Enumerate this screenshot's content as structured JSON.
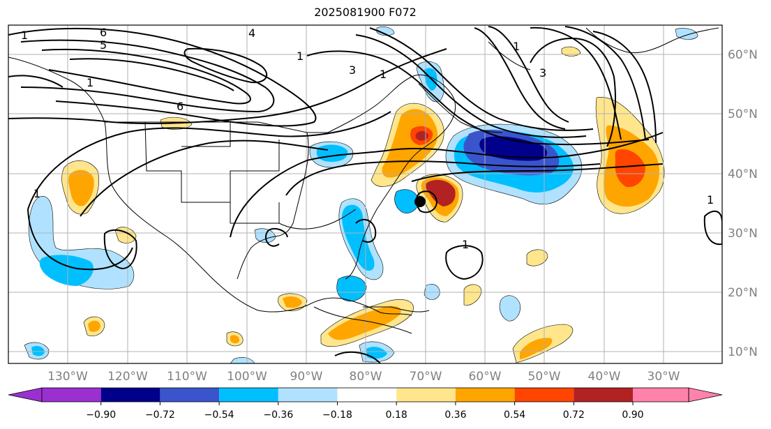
{
  "title": "2025081900 F072",
  "map": {
    "lon_labels": [
      "130°W",
      "120°W",
      "110°W",
      "100°W",
      "90°W",
      "80°W",
      "70°W",
      "60°W",
      "50°W",
      "40°W",
      "30°W"
    ],
    "lat_labels": [
      "60°N",
      "50°N",
      "40°N",
      "30°N",
      "20°N",
      "10°N"
    ],
    "contour_labels": [
      "6",
      "5",
      "4",
      "6",
      "1",
      "3",
      "1",
      "1",
      "1",
      "1",
      "1",
      "3",
      "1",
      "1"
    ],
    "storm_marker": {
      "lon": -70.5,
      "lat": 35.4
    }
  },
  "colorbar": {
    "ticks": [
      "−0.90",
      "−0.72",
      "−0.54",
      "−0.36",
      "−0.18",
      "0.18",
      "0.36",
      "0.54",
      "0.72",
      "0.90"
    ],
    "colors": [
      "#9b30d0",
      "#00008b",
      "#3a55cc",
      "#00bfff",
      "#b0e2ff",
      "#ffffff",
      "#ffe68c",
      "#ffa500",
      "#ff4500",
      "#b22222",
      "#ff82ab"
    ]
  },
  "colors": {
    "frame": "#000000",
    "grid": "#b0b0b0",
    "coast": "#000000"
  }
}
